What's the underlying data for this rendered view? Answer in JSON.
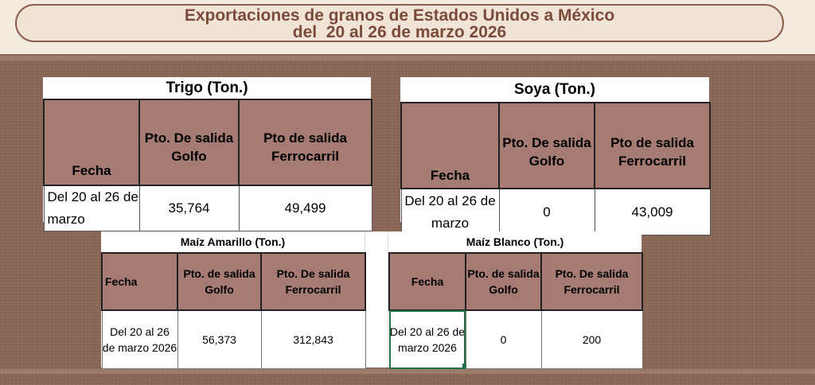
{
  "header": {
    "title_line1": "Exportaciones de granos de Estados Unidos a México",
    "title_line2": "del  20 al 26 de marzo 2026"
  },
  "colors": {
    "header_fill": "#a57b74",
    "title_text": "#7a4a3a",
    "background": "#8a6656",
    "selection": "#1e7145"
  },
  "trigo": {
    "title": "Trigo  (Ton.)",
    "headers": [
      "Fecha",
      "Pto. De salida Golfo",
      "Pto de salida Ferrocarril"
    ],
    "row": [
      "Del 20 al 26 de marzo",
      "35,764",
      "49,499"
    ]
  },
  "soya": {
    "title": "Soya  (Ton.)",
    "headers": [
      "Fecha",
      "Pto. De salida Golfo",
      "Pto de salida Ferrocarril"
    ],
    "row": [
      "Del 20 al 26 de marzo",
      "0",
      "43,009"
    ]
  },
  "maiz_amarillo": {
    "title": "Maíz Amarillo (Ton.)",
    "headers": [
      "Fecha",
      "Pto. de salida Golfo",
      "Pto. De salida Ferrocarril"
    ],
    "row": [
      "Del 20 al 26 de marzo 2026",
      "56,373",
      "312,843"
    ]
  },
  "maiz_blanco": {
    "title": "Maíz Blanco (Ton.)",
    "headers": [
      "Fecha",
      "Pto. de salida Golfo",
      "Pto. De salida Ferrocarril"
    ],
    "row": [
      "Del 20 al 26 de marzo 2026",
      "0",
      "200"
    ]
  }
}
